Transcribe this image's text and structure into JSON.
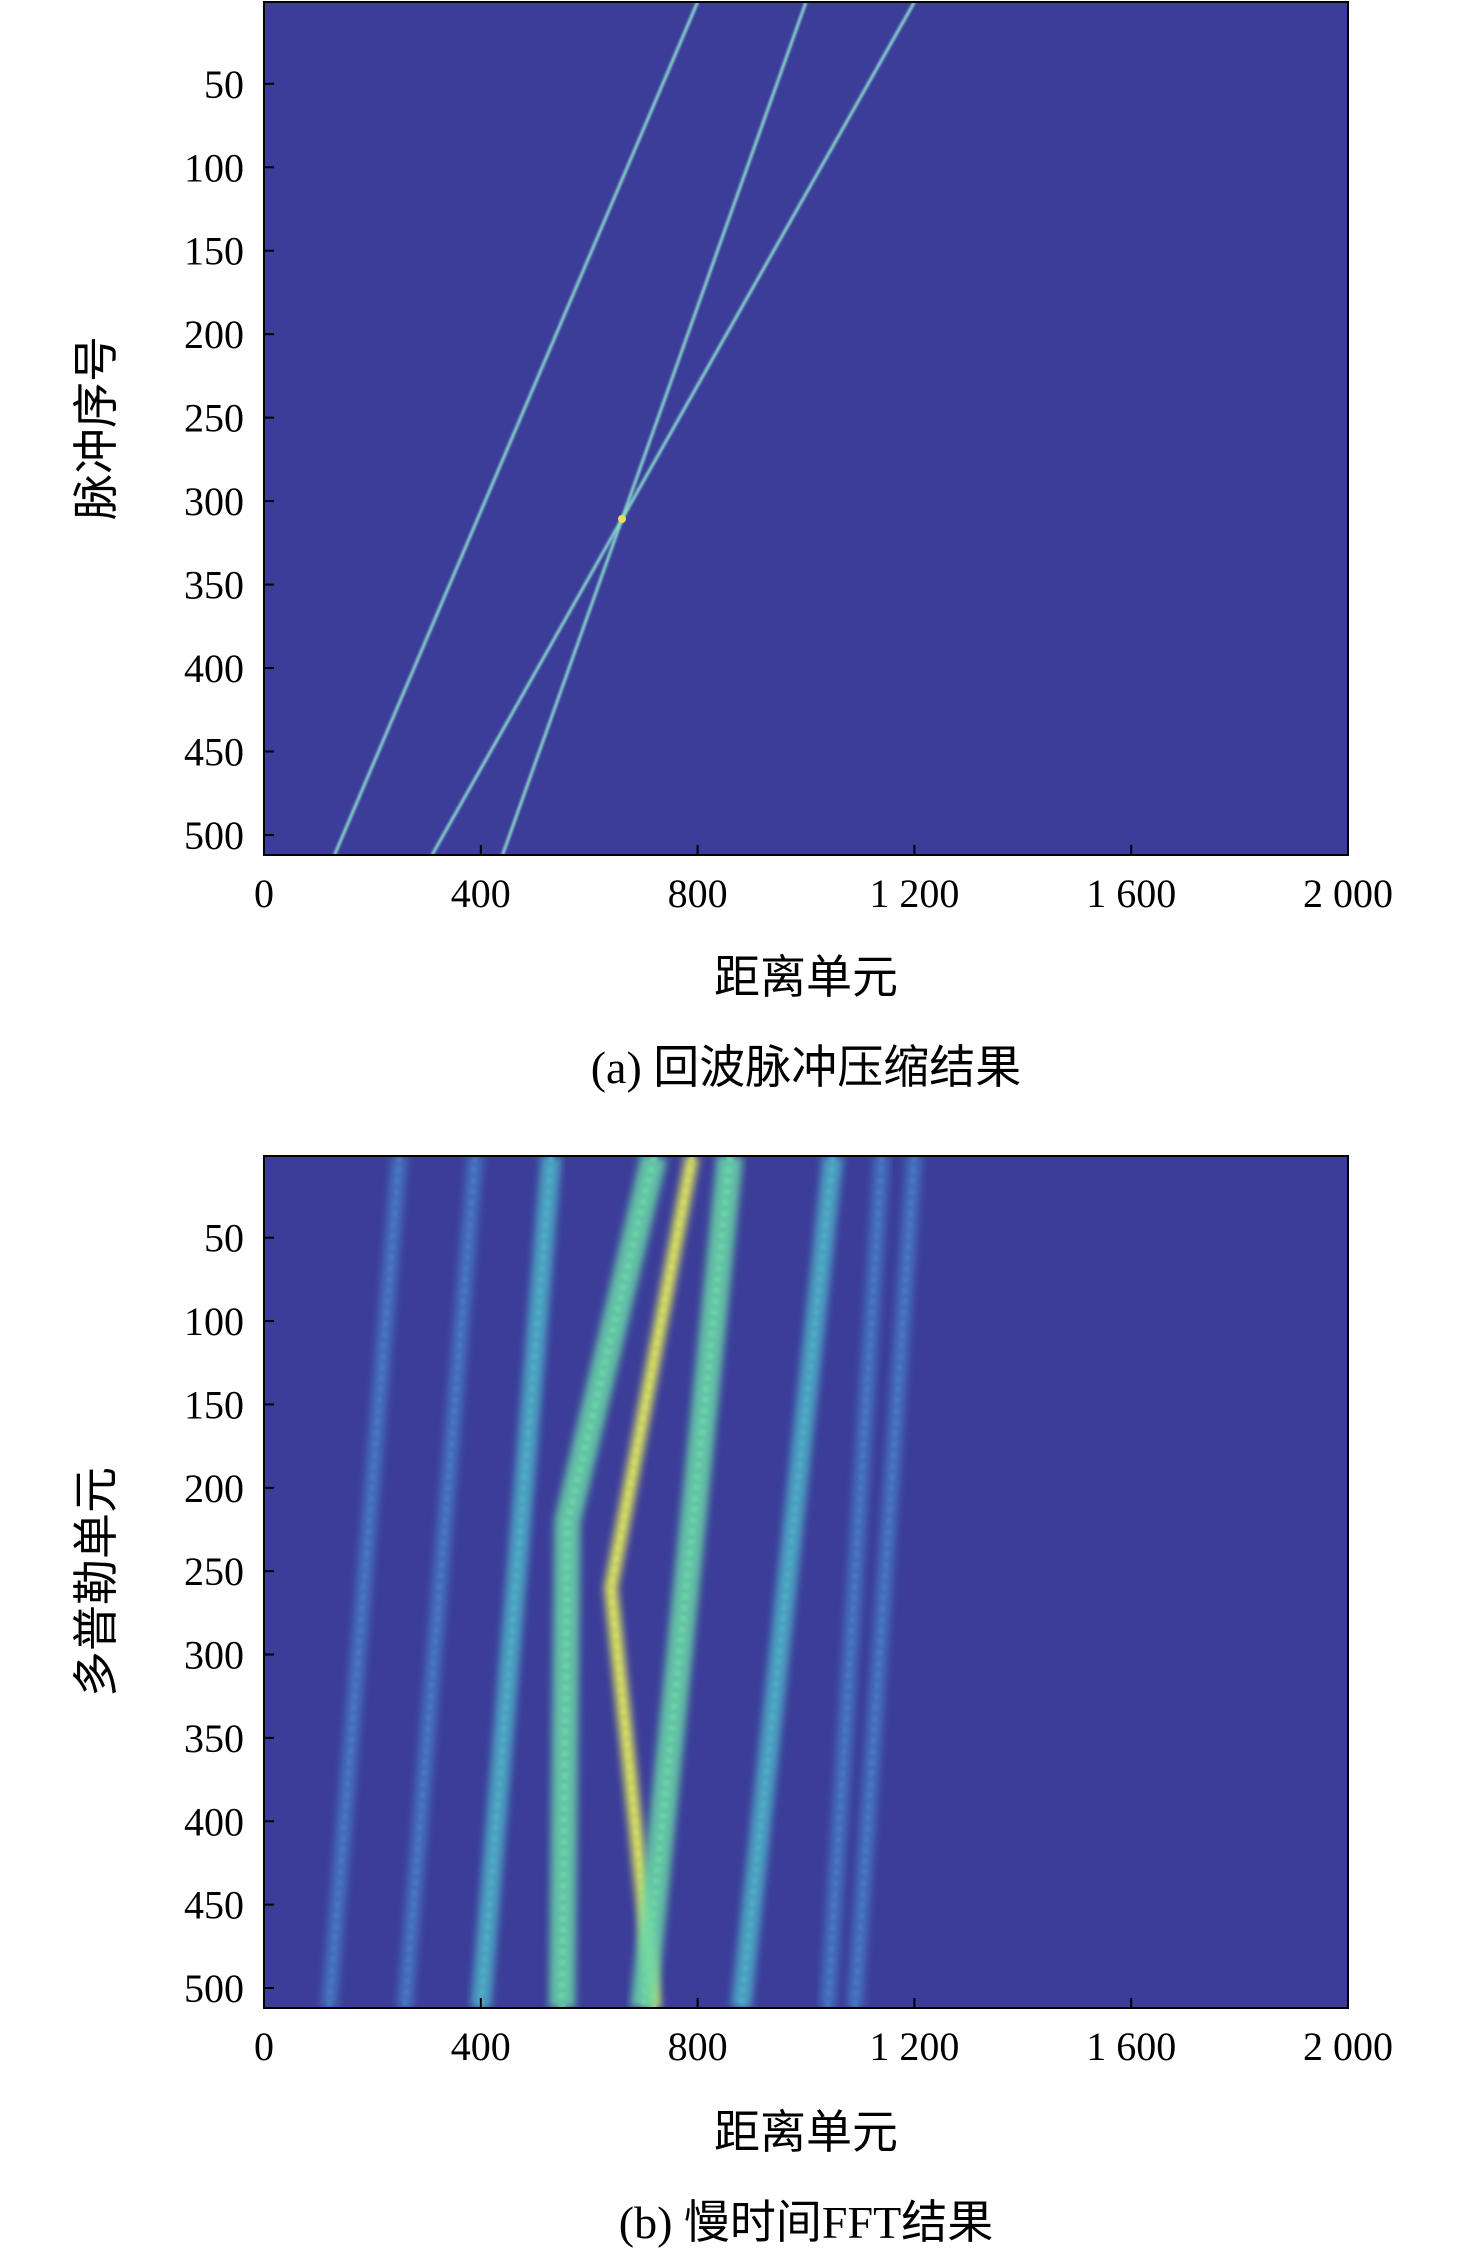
{
  "chart_data": [
    {
      "type": "heatmap",
      "caption": "(a) 回波脉冲压缩结果",
      "xlabel": "距离单元",
      "ylabel": "脉冲序号",
      "xlim": [
        0,
        2000
      ],
      "ylim": [
        1,
        512
      ],
      "y_reversed": true,
      "grid": false,
      "x_ticks": [
        0,
        400,
        800,
        1200,
        1600,
        2000
      ],
      "x_tick_labels": [
        "0",
        "400",
        "800",
        "1 200",
        "1 600",
        "2 000"
      ],
      "y_ticks": [
        50,
        100,
        150,
        200,
        250,
        300,
        350,
        400,
        450,
        500
      ],
      "y_tick_labels": [
        "50",
        "100",
        "150",
        "200",
        "250",
        "300",
        "350",
        "400",
        "450",
        "500"
      ],
      "colors": {
        "background": "#3b3d99",
        "trace": "#8fe0d2",
        "crossing": "#e8dc5a"
      },
      "traces": [
        {
          "points": [
            [
              800,
              1
            ],
            [
              130,
              512
            ]
          ]
        },
        {
          "points": [
            [
              1000,
              1
            ],
            [
              440,
              512
            ]
          ]
        },
        {
          "points": [
            [
              1200,
              1
            ],
            [
              310,
              512
            ]
          ]
        }
      ]
    },
    {
      "type": "heatmap",
      "caption": "(b) 慢时间FFT结果",
      "xlabel": "距离单元",
      "ylabel": "多普勒单元",
      "xlim": [
        0,
        2000
      ],
      "ylim": [
        1,
        512
      ],
      "y_reversed": true,
      "grid": false,
      "x_ticks": [
        0,
        400,
        800,
        1200,
        1600,
        2000
      ],
      "x_tick_labels": [
        "0",
        "400",
        "800",
        "1 200",
        "1 600",
        "2 000"
      ],
      "y_ticks": [
        50,
        100,
        150,
        200,
        250,
        300,
        350,
        400,
        450,
        500
      ],
      "y_tick_labels": [
        "50",
        "100",
        "150",
        "200",
        "250",
        "300",
        "350",
        "400",
        "450",
        "500"
      ],
      "colors": {
        "background": "#3b3d99",
        "band_low": "#4a7ec8",
        "band_mid": "#4fb0c8",
        "band_high": "#6ad8a8",
        "peak": "#d8e060"
      },
      "bands": [
        {
          "points": [
            [
              250,
              1
            ],
            [
              120,
              512
            ]
          ],
          "level": "low"
        },
        {
          "points": [
            [
              390,
              1
            ],
            [
              260,
              512
            ]
          ],
          "level": "low"
        },
        {
          "points": [
            [
              530,
              1
            ],
            [
              400,
              512
            ]
          ],
          "level": "mid"
        },
        {
          "points": [
            [
              720,
              1
            ],
            [
              560,
              220
            ],
            [
              550,
              512
            ]
          ],
          "level": "high"
        },
        {
          "points": [
            [
              790,
              1
            ],
            [
              640,
              260
            ],
            [
              720,
              512
            ]
          ],
          "level": "peak"
        },
        {
          "points": [
            [
              860,
              1
            ],
            [
              700,
              512
            ]
          ],
          "level": "high"
        },
        {
          "points": [
            [
              1050,
              1
            ],
            [
              880,
              512
            ]
          ],
          "level": "mid"
        },
        {
          "points": [
            [
              1140,
              1
            ],
            [
              1040,
              512
            ]
          ],
          "level": "low"
        },
        {
          "points": [
            [
              1200,
              1
            ],
            [
              1090,
              512
            ]
          ],
          "level": "low"
        }
      ]
    }
  ]
}
